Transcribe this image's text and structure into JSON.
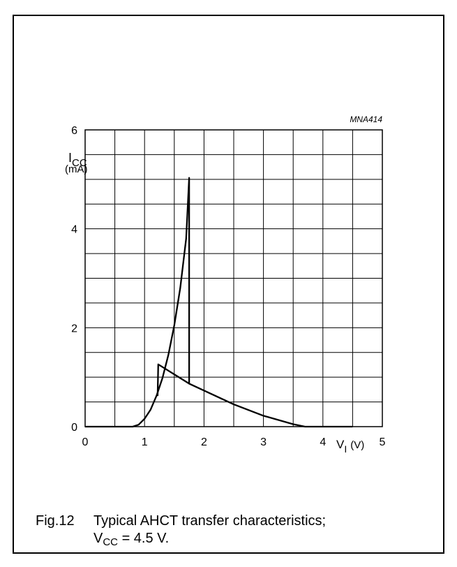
{
  "figure": {
    "code": "MNA414",
    "number": "Fig.12",
    "caption_line1": "Typical AHCT transfer characteristics;",
    "caption_line2_symbol": "V",
    "caption_line2_sub": "CC",
    "caption_line2_rest": " = 4.5 V."
  },
  "chart_data": {
    "type": "line",
    "xlabel": {
      "symbol": "V",
      "sub": "I",
      "unit": "(V)"
    },
    "ylabel": {
      "symbol": "I",
      "sub": "CC",
      "unit": "(mA)"
    },
    "xlim": [
      0,
      5
    ],
    "ylim": [
      0,
      6
    ],
    "x_ticks": [
      "0",
      "1",
      "2",
      "3",
      "4",
      "5"
    ],
    "y_ticks": [
      "0",
      "2",
      "4",
      "6"
    ],
    "grid": true,
    "grid_x_step": 0.5,
    "grid_y_step": 0.5,
    "series": [
      {
        "x": [
          0,
          0.8,
          0.9,
          1.0,
          1.1,
          1.2,
          1.3,
          1.4,
          1.5,
          1.6,
          1.7,
          1.75,
          1.75,
          2.0,
          2.5,
          3.0,
          3.5,
          3.7,
          4.0,
          4.5
        ],
        "y": [
          0,
          0,
          0.04,
          0.16,
          0.34,
          0.62,
          0.98,
          1.45,
          2.05,
          2.8,
          3.8,
          5.03,
          0.87,
          0.73,
          0.45,
          0.22,
          0.05,
          0,
          0,
          0
        ]
      },
      {
        "x": [
          1.22,
          1.23,
          1.75
        ],
        "y": [
          0.62,
          1.26,
          0.87
        ]
      }
    ]
  }
}
